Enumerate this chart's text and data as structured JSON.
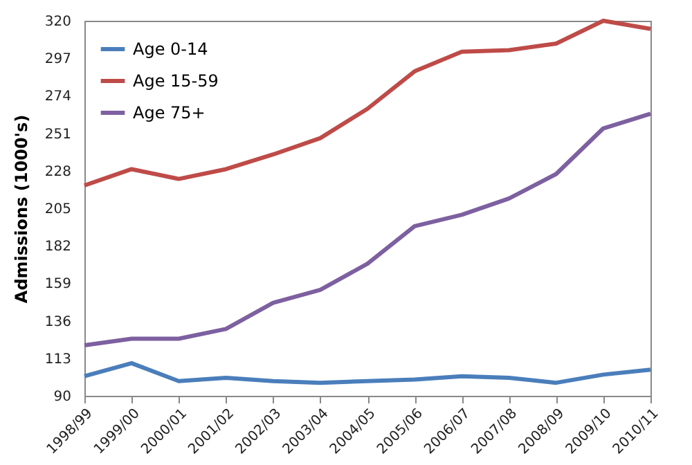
{
  "chart_data": {
    "type": "line",
    "ylabel": "Admissions (1000's)",
    "categories": [
      "1998/99",
      "1999/00",
      "2000/01",
      "2001/02",
      "2002/03",
      "2003/04",
      "2004/05",
      "2005/06",
      "2006/07",
      "2007/08",
      "2008/09",
      "2009/10",
      "2010/11"
    ],
    "series": [
      {
        "name": "Age 0-14",
        "color": "#4a7ebb",
        "values": [
          102,
          110,
          99,
          101,
          99,
          98,
          99,
          100,
          102,
          101,
          98,
          103,
          106
        ]
      },
      {
        "name": "Age 15-59",
        "color": "#be4b48",
        "values": [
          219,
          229,
          223,
          229,
          238,
          248,
          266,
          289,
          301,
          302,
          306,
          320,
          315
        ]
      },
      {
        "name": "Age 75+",
        "color": "#7d60a0",
        "values": [
          121,
          125,
          125,
          131,
          147,
          155,
          171,
          194,
          201,
          211,
          226,
          254,
          263
        ]
      }
    ],
    "ylim": [
      90,
      320
    ],
    "yticks": [
      90,
      113,
      136,
      159,
      182,
      205,
      228,
      251,
      274,
      297,
      320
    ],
    "grid": false,
    "legend": "top left",
    "marker": "none",
    "line_style": "solid"
  }
}
